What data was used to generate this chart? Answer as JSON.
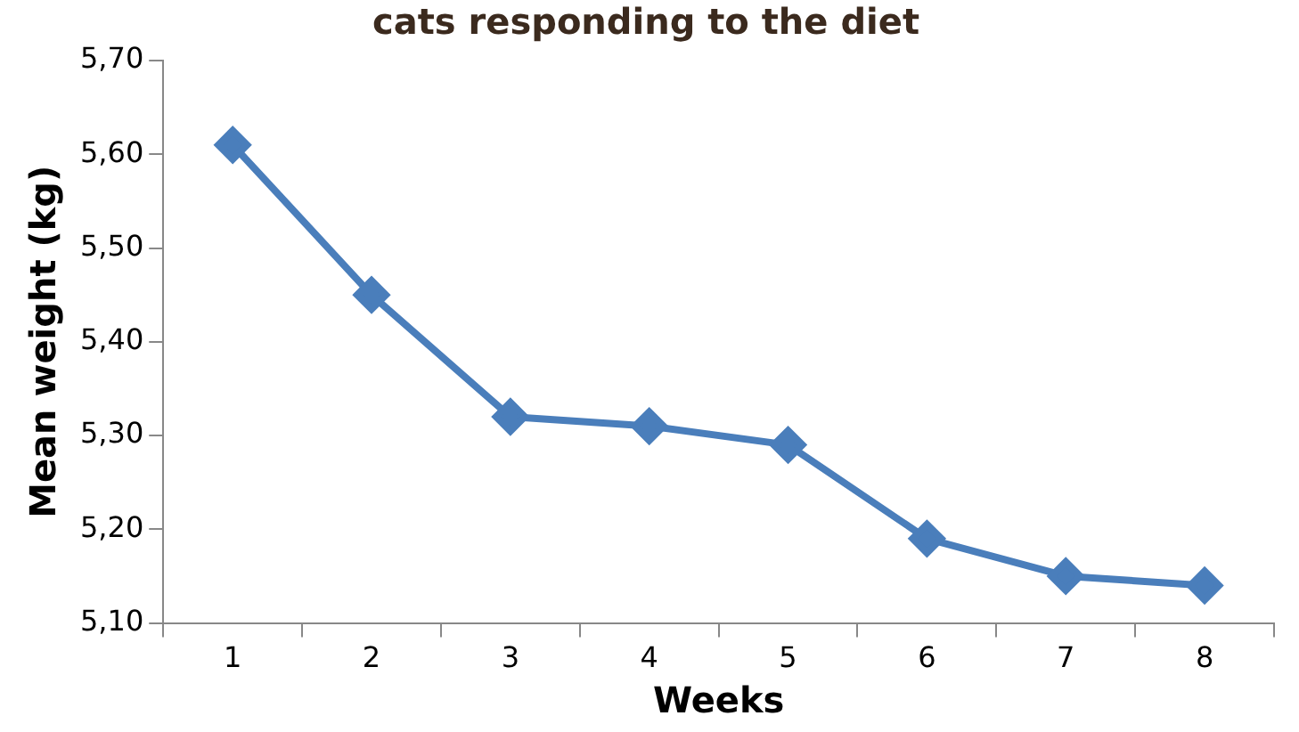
{
  "chart_data": {
    "type": "line",
    "title": "cats responding to the diet",
    "xlabel": "Weeks",
    "ylabel": "Mean weight (kg)",
    "categories": [
      "1",
      "2",
      "3",
      "4",
      "5",
      "6",
      "7",
      "8"
    ],
    "series": [
      {
        "color": "#4a7ebb",
        "values": [
          5.61,
          5.45,
          5.32,
          5.31,
          5.29,
          5.19,
          5.15,
          5.14
        ]
      }
    ],
    "ylim": [
      5.1,
      5.7
    ],
    "yticks": [
      {
        "value": 5.1,
        "label": "5,10"
      },
      {
        "value": 5.2,
        "label": "5,20"
      },
      {
        "value": 5.3,
        "label": "5,30"
      },
      {
        "value": 5.4,
        "label": "5,40"
      },
      {
        "value": 5.5,
        "label": "5,50"
      },
      {
        "value": 5.6,
        "label": "5,60"
      },
      {
        "value": 5.7,
        "label": "5,70"
      }
    ],
    "grid": false,
    "legend": false,
    "marker": "diamond",
    "line_style": "solid"
  }
}
